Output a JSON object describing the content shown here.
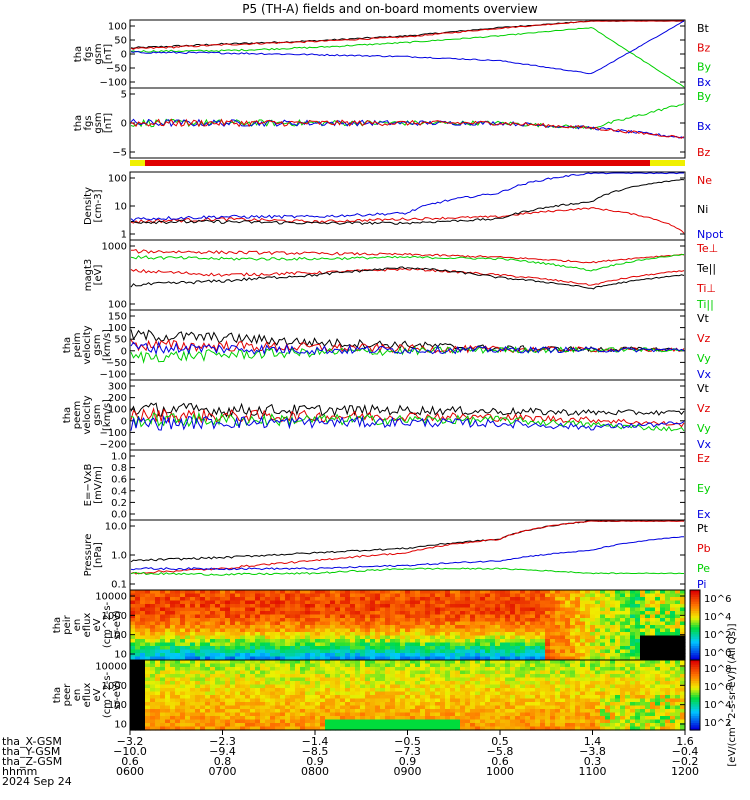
{
  "title": "P5 (TH-A) fields and on-board moments overview",
  "colors": {
    "black": "#000000",
    "red": "#e00000",
    "green": "#00d000",
    "blue": "#0000e0",
    "yellow": "#f0f000"
  },
  "panels": [
    {
      "id": "fgs-gsm",
      "ylabel": [
        "tha",
        "fgs",
        "gsm",
        "[nT]"
      ],
      "yticks": [
        "100",
        "50",
        "0",
        "−50",
        "−100"
      ],
      "legend": [
        {
          "label": "Bt",
          "color": "#000000"
        },
        {
          "label": "Bz",
          "color": "#e00000"
        },
        {
          "label": "By",
          "color": "#00d000"
        },
        {
          "label": "Bx",
          "color": "#0000e0"
        }
      ]
    },
    {
      "id": "fgs-dsl",
      "ylabel": [
        "tha",
        "fgs",
        "gsm",
        "[nT]"
      ],
      "yticks": [
        "5",
        "0",
        "−5"
      ],
      "legend": [
        {
          "label": "By",
          "color": "#00d000"
        },
        {
          "label": "Bx",
          "color": "#0000e0"
        },
        {
          "label": "Bz",
          "color": "#e00000"
        }
      ]
    },
    {
      "id": "density",
      "ylabel": [
        "Density",
        "[cm-3]"
      ],
      "yticks": [
        "100",
        "10",
        "1"
      ],
      "legend": [
        {
          "label": "Ne",
          "color": "#e00000"
        },
        {
          "label": "Ni",
          "color": "#000000"
        },
        {
          "label": "Npot",
          "color": "#0000e0"
        }
      ]
    },
    {
      "id": "temperature",
      "ylabel": [
        "magt3",
        "[eV]"
      ],
      "yticks": [
        "1000",
        "100"
      ],
      "legend": [
        {
          "label": "Te⊥",
          "color": "#e00000"
        },
        {
          "label": "Te||",
          "color": "#000000"
        },
        {
          "label": "Ti⊥",
          "color": "#e00000"
        },
        {
          "label": "Ti||",
          "color": "#00d000"
        }
      ]
    },
    {
      "id": "peim-velocity",
      "ylabel": [
        "tha",
        "peim",
        "velocity",
        "gsm",
        "[km/s]"
      ],
      "yticks": [
        "150",
        "100",
        "50",
        "0",
        "−50",
        "−100"
      ],
      "legend": [
        {
          "label": "Vt",
          "color": "#000000"
        },
        {
          "label": "Vz",
          "color": "#e00000"
        },
        {
          "label": "Vy",
          "color": "#00d000"
        },
        {
          "label": "Vx",
          "color": "#0000e0"
        }
      ]
    },
    {
      "id": "peem-velocity",
      "ylabel": [
        "tha",
        "peem",
        "velocity",
        "gsm",
        "[km/s]"
      ],
      "yticks": [
        "300",
        "200",
        "100",
        "0",
        "−100",
        "−200"
      ],
      "legend": [
        {
          "label": "Vt",
          "color": "#000000"
        },
        {
          "label": "Vz",
          "color": "#e00000"
        },
        {
          "label": "Vy",
          "color": "#00d000"
        },
        {
          "label": "Vx",
          "color": "#0000e0"
        }
      ]
    },
    {
      "id": "efield",
      "ylabel": [
        "E=−VxB",
        "[mV/m]"
      ],
      "yticks": [
        "1.0",
        "0.8",
        "0.6",
        "0.4",
        "0.2",
        "0.0"
      ],
      "legend": [
        {
          "label": "Ez",
          "color": "#e00000"
        },
        {
          "label": "Ey",
          "color": "#00d000"
        },
        {
          "label": "Ex",
          "color": "#0000e0"
        }
      ]
    },
    {
      "id": "pressure",
      "ylabel": [
        "Pressure",
        "[nPa]"
      ],
      "yticks": [
        "10.0",
        "1.0",
        "0.1"
      ],
      "legend": [
        {
          "label": "Pt",
          "color": "#000000"
        },
        {
          "label": "Pb",
          "color": "#e00000"
        },
        {
          "label": "Pe",
          "color": "#00d000"
        },
        {
          "label": "Pi",
          "color": "#0000e0"
        }
      ]
    },
    {
      "id": "peir-spec",
      "ylabel": [
        "tha",
        "peir",
        "en",
        "eflux",
        "eV",
        "(cm^2-s-",
        "sr-eV)"
      ],
      "yticks": [
        "10000",
        "1000",
        "100",
        "10"
      ]
    },
    {
      "id": "peer-spec",
      "ylabel": [
        "tha",
        "peer",
        "en",
        "eflux",
        "eV",
        "(cm^2-s-",
        "sr-eV)"
      ],
      "yticks": [
        "10000",
        "1000",
        "100",
        "10"
      ]
    }
  ],
  "colorbar": {
    "label": "[eV/(cm^2-s-sr-eV)] (All Qs)]",
    "ticks_top": [
      "10^6",
      "10^4",
      "10^2",
      "10^0"
    ],
    "ticks_bottom": [
      "10^8",
      "10^6",
      "10^4",
      "10^2"
    ]
  },
  "xaxis": {
    "rows": [
      {
        "label": "tha_X-GSM",
        "values": [
          "−3.2",
          "−2.3",
          "−1.4",
          "−0.5",
          "0.5",
          "1.4",
          "1.6"
        ]
      },
      {
        "label": "tha_Y-GSM",
        "values": [
          "−10.0",
          "−9.4",
          "−8.5",
          "−7.3",
          "−5.8",
          "−3.8",
          "−0.4"
        ]
      },
      {
        "label": "tha_Z-GSM",
        "values": [
          "0.6",
          "0.8",
          "0.9",
          "0.9",
          "0.6",
          "0.3",
          "−0.2"
        ]
      },
      {
        "label": "hhmm",
        "values": [
          "0600",
          "0700",
          "0800",
          "0900",
          "1000",
          "1100",
          "1200"
        ]
      }
    ],
    "date": "2024 Sep 24"
  },
  "chart_data": {
    "type": "line",
    "title": "P5 (TH-A) fields and on-board moments overview",
    "x": [
      "0600",
      "0700",
      "0800",
      "0900",
      "1000",
      "1100",
      "1200"
    ],
    "xlabel": "hhmm",
    "date": "2024 Sep 24",
    "subplots": [
      {
        "ylabel": "tha fgs gsm [nT]",
        "ylim": [
          -100,
          100
        ],
        "series": [
          {
            "name": "Bt",
            "values": [
              18,
              30,
              40,
              55,
              80,
              100,
              100
            ]
          },
          {
            "name": "Bz",
            "values": [
              15,
              28,
              38,
              52,
              78,
              100,
              100
            ]
          },
          {
            "name": "By",
            "values": [
              8,
              10,
              20,
              35,
              55,
              80,
              -100
            ]
          },
          {
            "name": "Bx",
            "values": [
              5,
              3,
              -2,
              -8,
              -20,
              -60,
              100
            ]
          }
        ]
      },
      {
        "ylabel": "tha fgs gsm [nT]",
        "ylim": [
          -7,
          7
        ],
        "series": [
          {
            "name": "By",
            "values": [
              0,
              0,
              0,
              0,
              0,
              -1,
              4
            ]
          },
          {
            "name": "Bx",
            "values": [
              0,
              0,
              0,
              0,
              0,
              -1,
              -3
            ]
          },
          {
            "name": "Bz",
            "values": [
              0,
              0,
              0,
              0,
              0,
              -1,
              -3
            ]
          }
        ]
      },
      {
        "ylabel": "Density [cm-3]",
        "ylim": [
          0.5,
          100
        ],
        "scale": "log",
        "series": [
          {
            "name": "Ne",
            "values": [
              2,
              2.5,
              2,
              2.5,
              3,
              6,
              0.8
            ]
          },
          {
            "name": "Ni",
            "values": [
              2,
              2,
              1.8,
              1.8,
              2.5,
              10,
              60
            ]
          },
          {
            "name": "Npot",
            "values": [
              2.5,
              3,
              3,
              4,
              20,
              100,
              100
            ]
          }
        ]
      },
      {
        "ylabel": "magt3 [eV]",
        "ylim": [
          30,
          3000
        ],
        "scale": "log",
        "series": [
          {
            "name": "Te⊥",
            "values": [
              400,
              300,
              350,
              450,
              300,
              150,
              400
            ]
          },
          {
            "name": "Te||",
            "values": [
              150,
              200,
              300,
              500,
              250,
              120,
              300
            ]
          },
          {
            "name": "Ti⊥",
            "values": [
              1500,
              1400,
              1300,
              1200,
              1000,
              700,
              1200
            ]
          },
          {
            "name": "Ti||",
            "values": [
              1000,
              900,
              900,
              1000,
              900,
              400,
              1200
            ]
          }
        ]
      },
      {
        "ylabel": "tha peim velocity gsm [km/s]",
        "ylim": [
          -120,
          160
        ],
        "series": [
          {
            "name": "Vt",
            "values": [
              60,
              50,
              30,
              20,
              5,
              3,
              2
            ]
          },
          {
            "name": "Vz",
            "values": [
              20,
              15,
              10,
              5,
              2,
              1,
              0
            ]
          },
          {
            "name": "Vy",
            "values": [
              -30,
              -20,
              -10,
              -5,
              0,
              0,
              0
            ]
          },
          {
            "name": "Vx",
            "values": [
              10,
              5,
              0,
              0,
              0,
              0,
              0
            ]
          }
        ]
      },
      {
        "ylabel": "tha peem velocity gsm [km/s]",
        "ylim": [
          -240,
          320
        ],
        "series": [
          {
            "name": "Vt",
            "values": [
              90,
              80,
              80,
              80,
              70,
              60,
              60
            ]
          },
          {
            "name": "Vz",
            "values": [
              40,
              30,
              30,
              30,
              20,
              0,
              -40
            ]
          },
          {
            "name": "Vy",
            "values": [
              0,
              0,
              0,
              0,
              0,
              -40,
              -80
            ]
          },
          {
            "name": "Vx",
            "values": [
              -30,
              -20,
              -20,
              -20,
              -30,
              -60,
              -30
            ]
          }
        ]
      },
      {
        "ylabel": "E=−VxB [mV/m]",
        "ylim": [
          0,
          1
        ],
        "series": []
      },
      {
        "ylabel": "Pressure [nPa]",
        "ylim": [
          0.05,
          20
        ],
        "scale": "log",
        "series": [
          {
            "name": "Pt",
            "values": [
              0.6,
              0.8,
              1.2,
              1.8,
              4,
              20,
              20
            ]
          },
          {
            "name": "Pb",
            "values": [
              0.2,
              0.3,
              0.6,
              1.2,
              4,
              20,
              20
            ]
          },
          {
            "name": "Pe",
            "values": [
              0.2,
              0.18,
              0.2,
              0.3,
              0.3,
              0.2,
              0.2
            ]
          },
          {
            "name": "Pi",
            "values": [
              0.3,
              0.3,
              0.3,
              0.4,
              0.6,
              1.5,
              5
            ]
          }
        ]
      }
    ]
  }
}
